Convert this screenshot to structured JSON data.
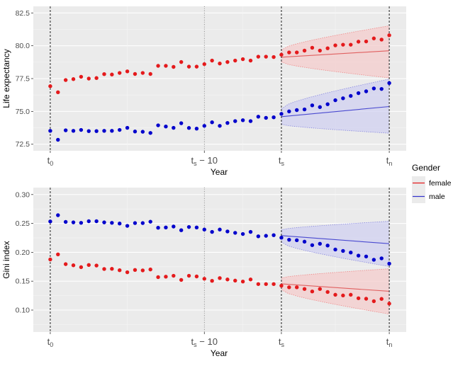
{
  "chart_data": [
    {
      "type": "scatter",
      "title": "",
      "xlabel": "Year",
      "ylabel": "Life expectancy",
      "ylim": [
        72.0,
        83.0
      ],
      "yticks": [
        72.5,
        75.0,
        77.5,
        80.0,
        82.5
      ],
      "ytick_labels": [
        "72.5",
        "75.0",
        "77.5",
        "80.0",
        "82.5"
      ],
      "xlim": [
        -2.2,
        46.2
      ],
      "xticks": [
        {
          "x": 0,
          "base": "t",
          "sub": "0",
          "suffix": ""
        },
        {
          "x": 20,
          "base": "t",
          "sub": "s",
          "suffix": " − 10"
        },
        {
          "x": 30,
          "base": "t",
          "sub": "s",
          "suffix": ""
        },
        {
          "x": 44,
          "base": "t",
          "sub": "n",
          "suffix": ""
        }
      ],
      "vlines": [
        {
          "x": 0,
          "style": "dashed"
        },
        {
          "x": 20,
          "style": "dotted"
        },
        {
          "x": 30,
          "style": "dashed"
        },
        {
          "x": 44,
          "style": "dashed"
        }
      ],
      "grid": true,
      "x": [
        0,
        1,
        2,
        3,
        4,
        5,
        6,
        7,
        8,
        9,
        10,
        11,
        12,
        13,
        14,
        15,
        16,
        17,
        18,
        19,
        20,
        21,
        22,
        23,
        24,
        25,
        26,
        27,
        28,
        29,
        30,
        31,
        32,
        33,
        34,
        35,
        36,
        37,
        38,
        39,
        40,
        41,
        42,
        43,
        44
      ],
      "series": [
        {
          "name": "female",
          "color": "#e41a1c",
          "values": [
            76.92,
            76.46,
            77.39,
            77.46,
            77.64,
            77.5,
            77.54,
            77.84,
            77.81,
            77.93,
            78.05,
            77.85,
            77.93,
            77.85,
            78.47,
            78.47,
            78.39,
            78.76,
            78.41,
            78.41,
            78.6,
            78.87,
            78.65,
            78.76,
            78.87,
            78.98,
            78.87,
            79.17,
            79.17,
            79.14,
            79.32,
            79.49,
            79.49,
            79.63,
            79.85,
            79.63,
            79.81,
            80.03,
            80.08,
            80.08,
            80.31,
            80.33,
            80.56,
            80.47,
            80.8
          ],
          "forecast": {
            "x": [
              30,
              44
            ],
            "mean": [
              79.13,
              79.62
            ],
            "lower": [
              78.77,
              77.55
            ],
            "upper": [
              79.67,
              81.52
            ]
          }
        },
        {
          "name": "male",
          "color": "#0000cc",
          "values": [
            73.52,
            72.84,
            73.56,
            73.52,
            73.59,
            73.5,
            73.5,
            73.52,
            73.52,
            73.59,
            73.75,
            73.47,
            73.45,
            73.36,
            73.94,
            73.85,
            73.75,
            74.1,
            73.74,
            73.69,
            73.9,
            74.17,
            73.9,
            74.12,
            74.26,
            74.33,
            74.26,
            74.6,
            74.51,
            74.55,
            74.81,
            75.0,
            75.1,
            75.15,
            75.46,
            75.33,
            75.55,
            75.85,
            76.0,
            76.18,
            76.39,
            76.53,
            76.75,
            76.71,
            77.16
          ],
          "forecast": {
            "x": [
              30,
              44
            ],
            "mean": [
              74.6,
              75.37
            ],
            "lower": [
              74.02,
              73.34
            ],
            "upper": [
              75.19,
              77.46
            ]
          }
        }
      ]
    },
    {
      "type": "scatter",
      "title": "",
      "xlabel": "Year",
      "ylabel": "Gini index",
      "ylim": [
        0.062,
        0.312
      ],
      "yticks": [
        0.1,
        0.15,
        0.2,
        0.25,
        0.3
      ],
      "ytick_labels": [
        "0.10",
        "0.15",
        "0.20",
        "0.25",
        "0.30"
      ],
      "xlim": [
        -2.2,
        46.2
      ],
      "xticks": [
        {
          "x": 0,
          "base": "t",
          "sub": "0",
          "suffix": ""
        },
        {
          "x": 20,
          "base": "t",
          "sub": "s",
          "suffix": " − 10"
        },
        {
          "x": 30,
          "base": "t",
          "sub": "s",
          "suffix": ""
        },
        {
          "x": 44,
          "base": "t",
          "sub": "n",
          "suffix": ""
        }
      ],
      "vlines": [
        {
          "x": 0,
          "style": "dashed"
        },
        {
          "x": 20,
          "style": "dotted"
        },
        {
          "x": 30,
          "style": "dashed"
        },
        {
          "x": 44,
          "style": "dashed"
        }
      ],
      "grid": true,
      "x": [
        0,
        1,
        2,
        3,
        4,
        5,
        6,
        7,
        8,
        9,
        10,
        11,
        12,
        13,
        14,
        15,
        16,
        17,
        18,
        19,
        20,
        21,
        22,
        23,
        24,
        25,
        26,
        27,
        28,
        29,
        30,
        31,
        32,
        33,
        34,
        35,
        36,
        37,
        38,
        39,
        40,
        41,
        42,
        43,
        44
      ],
      "series": [
        {
          "name": "female",
          "color": "#e41a1c",
          "values": [
            0.1876,
            0.1964,
            0.1795,
            0.1775,
            0.1743,
            0.178,
            0.1771,
            0.1711,
            0.1714,
            0.169,
            0.1655,
            0.1695,
            0.1687,
            0.1703,
            0.157,
            0.1578,
            0.1594,
            0.1522,
            0.1594,
            0.1582,
            0.1542,
            0.1506,
            0.1554,
            0.153,
            0.151,
            0.1494,
            0.153,
            0.145,
            0.145,
            0.145,
            0.1422,
            0.1394,
            0.1394,
            0.1365,
            0.1322,
            0.1365,
            0.1313,
            0.1265,
            0.1253,
            0.1265,
            0.1205,
            0.1196,
            0.1153,
            0.1193,
            0.1112
          ],
          "forecast": {
            "x": [
              30,
              44
            ],
            "mean": [
              0.1454,
              0.1325
            ],
            "lower": [
              0.1353,
              0.0931
            ],
            "upper": [
              0.1554,
              0.1715
            ]
          }
        },
        {
          "name": "male",
          "color": "#0000cc",
          "values": [
            0.2534,
            0.2642,
            0.2526,
            0.2518,
            0.251,
            0.2538,
            0.2538,
            0.2518,
            0.251,
            0.2498,
            0.2458,
            0.2506,
            0.2506,
            0.253,
            0.2425,
            0.243,
            0.2446,
            0.2382,
            0.2438,
            0.243,
            0.2394,
            0.2353,
            0.2394,
            0.2361,
            0.2337,
            0.2317,
            0.2353,
            0.2277,
            0.2285,
            0.2297,
            0.2253,
            0.2217,
            0.2209,
            0.2184,
            0.2124,
            0.2148,
            0.2117,
            0.2048,
            0.2024,
            0.1996,
            0.1943,
            0.1928,
            0.1871,
            0.1895,
            0.1804
          ],
          "forecast": {
            "x": [
              30,
              44
            ],
            "mean": [
              0.2289,
              0.2149
            ],
            "lower": [
              0.2177,
              0.1755
            ],
            "upper": [
              0.2389,
              0.2538
            ]
          }
        }
      ]
    }
  ],
  "legend": {
    "title": "Gender",
    "position": "right",
    "items": [
      {
        "label": "female",
        "color": "#e41a1c",
        "fill": "#f4cccc"
      },
      {
        "label": "male",
        "color": "#3333cc",
        "fill": "#ccccee"
      }
    ]
  }
}
